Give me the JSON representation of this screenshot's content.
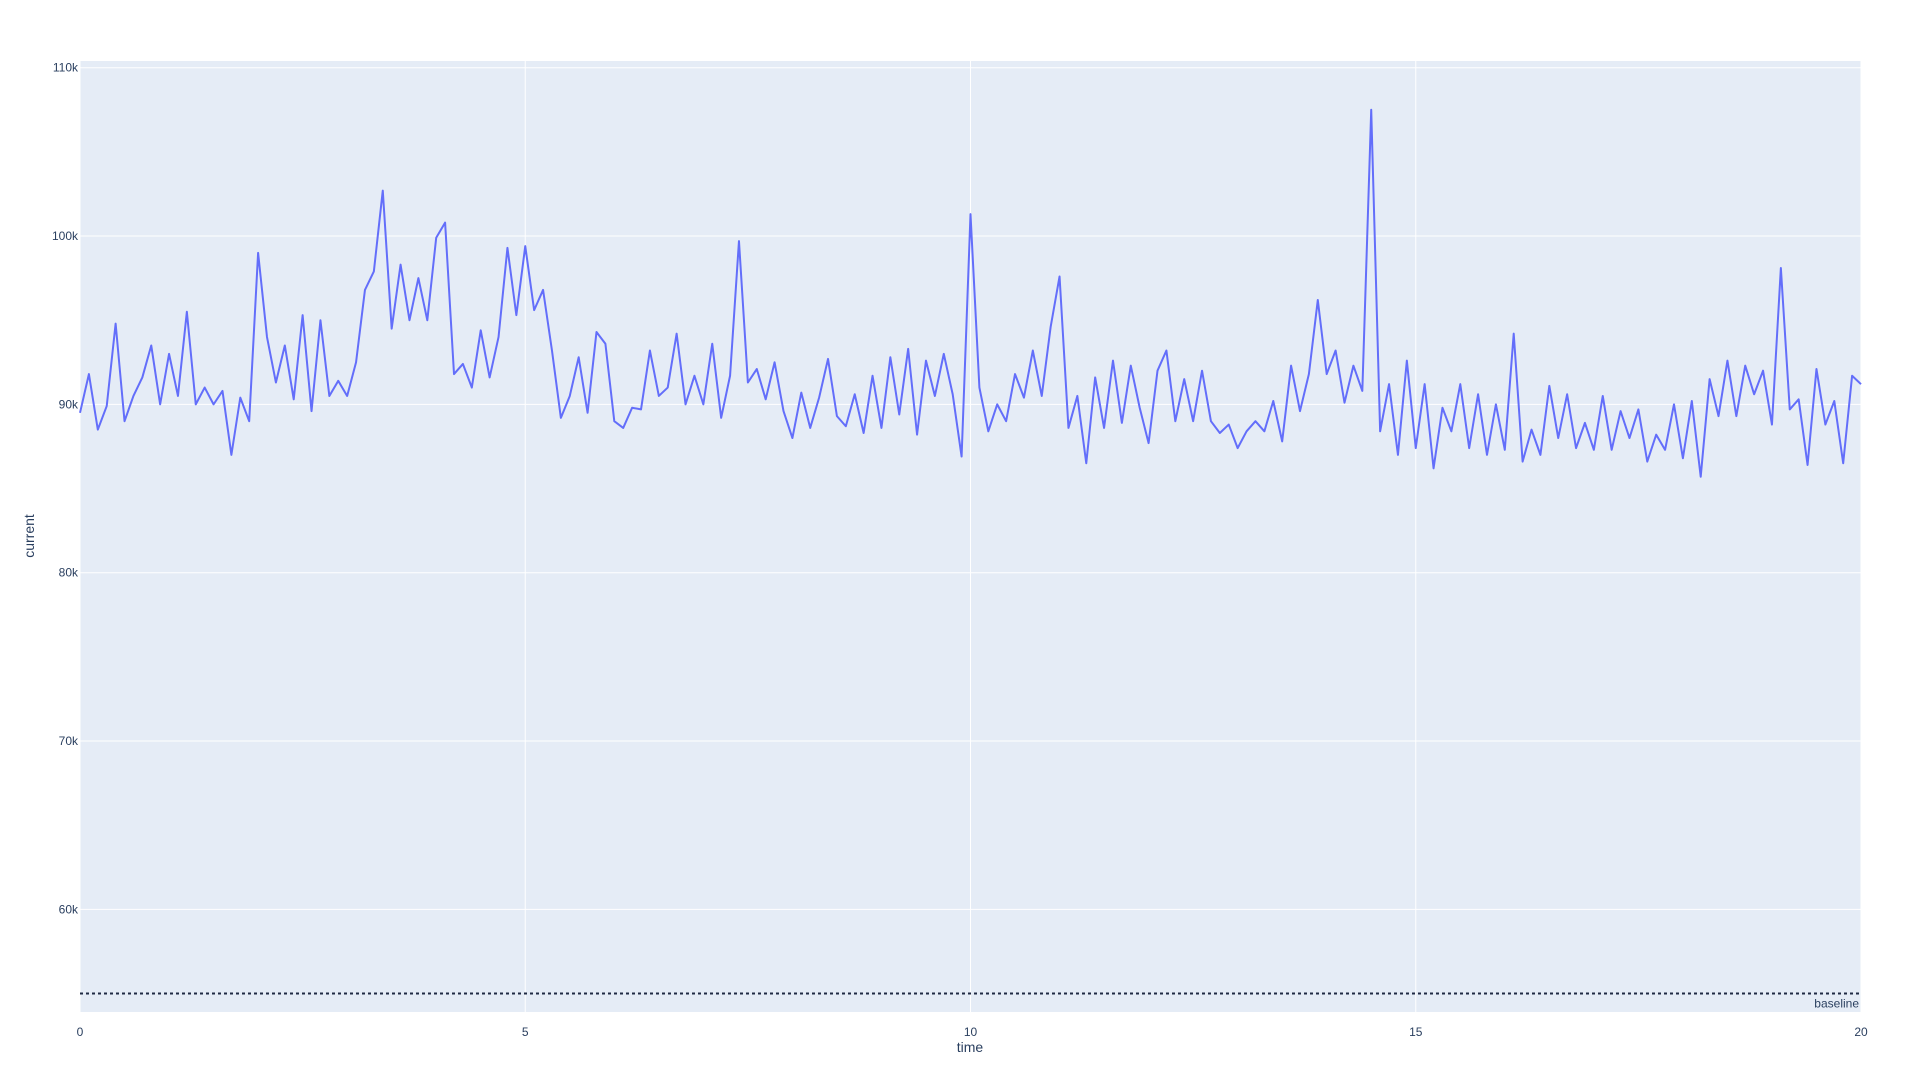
{
  "chart_data": {
    "type": "line",
    "xlabel": "time",
    "ylabel": "current",
    "x": [
      0,
      0.1,
      0.2,
      0.3,
      0.4,
      0.5,
      0.6,
      0.7,
      0.8,
      0.9,
      1,
      1.1,
      1.2,
      1.3,
      1.4,
      1.5,
      1.6,
      1.7,
      1.8,
      1.9,
      2,
      2.1,
      2.2,
      2.3,
      2.4,
      2.5,
      2.6,
      2.7,
      2.8,
      2.9,
      3,
      3.1,
      3.2,
      3.3,
      3.4,
      3.5,
      3.6,
      3.7,
      3.8,
      3.9,
      4,
      4.1,
      4.2,
      4.3,
      4.4,
      4.5,
      4.6,
      4.7,
      4.8,
      4.9,
      5,
      5.1,
      5.2,
      5.3,
      5.4,
      5.5,
      5.6,
      5.7,
      5.8,
      5.9,
      6,
      6.1,
      6.2,
      6.3,
      6.4,
      6.5,
      6.6,
      6.7,
      6.8,
      6.9,
      7,
      7.1,
      7.2,
      7.3,
      7.4,
      7.5,
      7.6,
      7.7,
      7.8,
      7.9,
      8,
      8.1,
      8.2,
      8.3,
      8.4,
      8.5,
      8.6,
      8.7,
      8.8,
      8.9,
      9,
      9.1,
      9.2,
      9.3,
      9.4,
      9.5,
      9.6,
      9.7,
      9.8,
      9.9,
      10,
      10.1,
      10.2,
      10.3,
      10.4,
      10.5,
      10.6,
      10.7,
      10.8,
      10.9,
      11,
      11.1,
      11.2,
      11.3,
      11.4,
      11.5,
      11.6,
      11.7,
      11.8,
      11.9,
      12,
      12.1,
      12.2,
      12.3,
      12.4,
      12.5,
      12.6,
      12.7,
      12.8,
      12.9,
      13,
      13.1,
      13.2,
      13.3,
      13.4,
      13.5,
      13.6,
      13.7,
      13.8,
      13.9,
      14,
      14.1,
      14.2,
      14.3,
      14.4,
      14.5,
      14.6,
      14.7,
      14.8,
      14.9,
      15,
      15.1,
      15.2,
      15.3,
      15.4,
      15.5,
      15.6,
      15.7,
      15.8,
      15.9,
      16,
      16.1,
      16.2,
      16.3,
      16.4,
      16.5,
      16.6,
      16.7,
      16.8,
      16.9,
      17,
      17.1,
      17.2,
      17.3,
      17.4,
      17.5,
      17.6,
      17.7,
      17.8,
      17.9,
      18,
      18.1,
      18.2,
      18.3,
      18.4,
      18.5,
      18.6,
      18.7,
      18.8,
      18.9,
      19,
      19.1,
      19.2,
      19.3,
      19.4,
      19.5,
      19.6,
      19.7,
      19.8,
      19.9,
      20
    ],
    "series": [
      {
        "name": "current",
        "color": "#636efa",
        "values": [
          89500,
          91800,
          88500,
          89900,
          94800,
          89000,
          90500,
          91600,
          93500,
          90000,
          93000,
          90500,
          95500,
          90000,
          91000,
          90000,
          90800,
          87000,
          90400,
          89000,
          99000,
          94000,
          91300,
          93500,
          90300,
          95300,
          89600,
          95000,
          90500,
          91400,
          90500,
          92500,
          96800,
          97900,
          102700,
          94500,
          98300,
          95000,
          97500,
          95000,
          99900,
          100800,
          91800,
          92400,
          91000,
          94400,
          91600,
          94000,
          99300,
          95300,
          99400,
          95600,
          96800,
          93200,
          89200,
          90500,
          92800,
          89500,
          94300,
          93600,
          89000,
          88600,
          89800,
          89700,
          93200,
          90500,
          91000,
          94200,
          90000,
          91700,
          90000,
          93600,
          89200,
          91700,
          99700,
          91300,
          92100,
          90300,
          92500,
          89600,
          88000,
          90700,
          88600,
          90400,
          92700,
          89300,
          88700,
          90600,
          88300,
          91700,
          88600,
          92800,
          89400,
          93300,
          88200,
          92600,
          90500,
          93000,
          90600,
          86900,
          101300,
          91000,
          88400,
          90000,
          89000,
          91800,
          90400,
          93200,
          90500,
          94600,
          97600,
          88600,
          90500,
          86500,
          91600,
          88600,
          92600,
          88900,
          92300,
          89800,
          87700,
          92000,
          93200,
          89000,
          91500,
          89000,
          92000,
          89000,
          88300,
          88800,
          87400,
          88400,
          89000,
          88400,
          90200,
          87800,
          92300,
          89600,
          91800,
          96200,
          91800,
          93200,
          90100,
          92300,
          90800,
          107500,
          88400,
          91200,
          87000,
          92600,
          87400,
          91200,
          86200,
          89800,
          88400,
          91200,
          87400,
          90600,
          87000,
          90000,
          87300,
          94200,
          86600,
          88500,
          87000,
          91100,
          88000,
          90600,
          87400,
          88900,
          87300,
          90500,
          87300,
          89600,
          88000,
          89700,
          86600,
          88200,
          87300,
          90000,
          86800,
          90200,
          85700,
          91500,
          89300,
          92600,
          89300,
          92300,
          90600,
          92000,
          88800,
          98100,
          89700,
          90300,
          86400,
          92100,
          88800,
          90200,
          86500,
          91700,
          91200
        ]
      }
    ],
    "xlim": [
      0,
      20
    ],
    "xticks": [
      0,
      5,
      10,
      15,
      20
    ],
    "ylim": [
      53900,
      110400
    ],
    "yticks": [
      {
        "value": 60000,
        "label": "60k"
      },
      {
        "value": 70000,
        "label": "70k"
      },
      {
        "value": 80000,
        "label": "80k"
      },
      {
        "value": 90000,
        "label": "90k"
      },
      {
        "value": 100000,
        "label": "100k"
      },
      {
        "value": 110000,
        "label": "110k"
      }
    ],
    "grid": true,
    "hlines": [
      {
        "y": 55000,
        "label": "baseline",
        "color": "#1f2a44"
      }
    ]
  }
}
